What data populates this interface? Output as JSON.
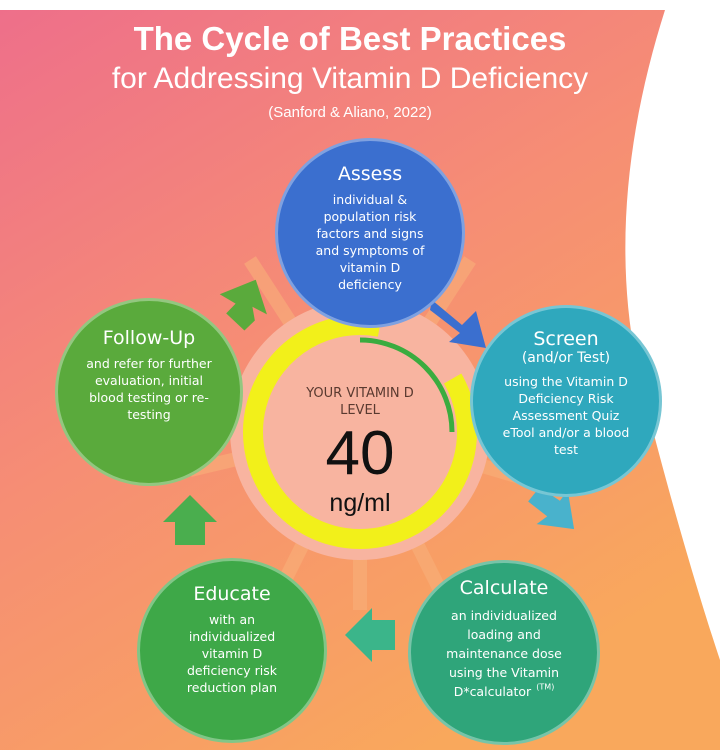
{
  "title": {
    "line1": "The Cycle of Best Practices",
    "line2": "for Addressing Vitamin D Deficiency",
    "citation": "(Sanford & Aliano, 2022)"
  },
  "colors": {
    "assess": "#3b6fcf",
    "screen": "#2fa8bd",
    "calculate": "#2fa57a",
    "educate": "#3ea848",
    "follow_up": "#5aaa3c",
    "gauge_yellow": "#f2f01a",
    "gauge_green": "#3aac3f"
  },
  "steps": {
    "assess": {
      "heading": "Assess",
      "body": "individual & population risk factors and signs and symptoms of vitamin D deficiency"
    },
    "screen": {
      "heading": "Screen",
      "sub": "(and/or Test)",
      "body": "using the Vitamin D Deficiency Risk Assessment Quiz eTool and/or a blood test"
    },
    "calculate": {
      "heading": "Calculate",
      "body": "an individualized loading and maintenance dose using the Vitamin D*calculator",
      "tm": "(TM)"
    },
    "educate": {
      "heading": "Educate",
      "body": "with an individualized vitamin D deficiency risk reduction plan"
    },
    "follow_up": {
      "heading": "Follow-Up",
      "body": "and refer for further evaluation, initial blood testing or re-testing"
    }
  },
  "gauge": {
    "label": "YOUR VITAMIN D LEVEL",
    "value": "40",
    "unit": "ng/ml",
    "green_arc_fraction": 0.25
  }
}
